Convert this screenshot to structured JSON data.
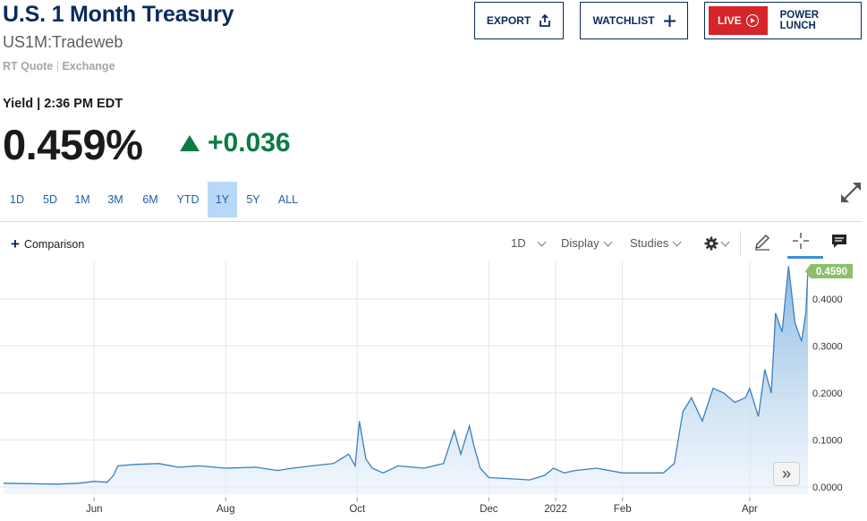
{
  "header": {
    "title": "U.S. 1 Month Treasury",
    "symbol": "US1M:Tradeweb",
    "quote_type": "RT Quote",
    "quote_separator": "|",
    "exchange": "Exchange"
  },
  "quote": {
    "yield_label": "Yield | 2:36 PM EDT",
    "value": "0.459%",
    "change": "+0.036",
    "direction": "up"
  },
  "actions": {
    "export_label": "EXPORT",
    "watchlist_label": "WATCHLIST",
    "live_label": "LIVE",
    "power_lunch_label": "POWER LUNCH"
  },
  "ranges": {
    "items": [
      "1D",
      "5D",
      "1M",
      "3M",
      "6M",
      "YTD",
      "1Y",
      "5Y",
      "ALL"
    ],
    "active": "1Y"
  },
  "toolbar": {
    "comparison_label": "Comparison",
    "interval_label": "1D",
    "display_label": "Display",
    "studies_label": "Studies",
    "icons": [
      "gear-icon",
      "pencil-icon",
      "crosshair-icon",
      "comment-icon"
    ]
  },
  "colors": {
    "brand": "#0a2b5c",
    "up": "#0a7b44",
    "live": "#d62429",
    "active_range": "#b7d9f7",
    "line": "#3b7fc0",
    "last_tag": "#8cbf6a"
  },
  "chart_data": {
    "type": "area",
    "x_tick_labels": [
      "Jun",
      "Aug",
      "Oct",
      "Dec",
      "2022",
      "Feb",
      "Apr"
    ],
    "y_ticks": [
      0.0,
      0.1,
      0.2,
      0.3,
      0.4
    ],
    "y_tick_labels": [
      "0.0000",
      "0.1000",
      "0.2000",
      "0.3000",
      "0.4000"
    ],
    "ylim": [
      -0.01,
      0.48
    ],
    "grid": true,
    "last_value_label": "0.4590",
    "series": [
      {
        "x": [
          "2021-04-20",
          "2021-05-01",
          "2021-05-15",
          "2021-05-25",
          "2021-06-01",
          "2021-06-07",
          "2021-06-10",
          "2021-06-12",
          "2021-06-20",
          "2021-07-01",
          "2021-07-10",
          "2021-07-20",
          "2021-08-01",
          "2021-08-15",
          "2021-08-25",
          "2021-09-01",
          "2021-09-10",
          "2021-09-20",
          "2021-09-27",
          "2021-09-30",
          "2021-10-02",
          "2021-10-05",
          "2021-10-08",
          "2021-10-13",
          "2021-10-20",
          "2021-11-01",
          "2021-11-10",
          "2021-11-15",
          "2021-11-18",
          "2021-11-22",
          "2021-11-24",
          "2021-11-27",
          "2021-12-01",
          "2021-12-10",
          "2021-12-20",
          "2021-12-27",
          "2021-12-31",
          "2022-01-05",
          "2022-01-10",
          "2022-01-20",
          "2022-02-01",
          "2022-02-10",
          "2022-02-20",
          "2022-02-25",
          "2022-03-01",
          "2022-03-05",
          "2022-03-10",
          "2022-03-15",
          "2022-03-20",
          "2022-03-25",
          "2022-03-30",
          "2022-04-01",
          "2022-04-05",
          "2022-04-08",
          "2022-04-11",
          "2022-04-13",
          "2022-04-16",
          "2022-04-19",
          "2022-04-22",
          "2022-04-25",
          "2022-04-27",
          "2022-04-28"
        ],
        "values": [
          0.008,
          0.007,
          0.006,
          0.008,
          0.012,
          0.01,
          0.025,
          0.045,
          0.048,
          0.05,
          0.042,
          0.045,
          0.04,
          0.042,
          0.035,
          0.04,
          0.045,
          0.05,
          0.07,
          0.045,
          0.14,
          0.06,
          0.04,
          0.03,
          0.045,
          0.04,
          0.05,
          0.12,
          0.07,
          0.13,
          0.09,
          0.04,
          0.02,
          0.018,
          0.015,
          0.025,
          0.04,
          0.03,
          0.035,
          0.04,
          0.03,
          0.03,
          0.03,
          0.05,
          0.16,
          0.19,
          0.14,
          0.21,
          0.2,
          0.18,
          0.19,
          0.21,
          0.15,
          0.25,
          0.2,
          0.37,
          0.33,
          0.47,
          0.35,
          0.31,
          0.37,
          0.459
        ]
      }
    ]
  }
}
